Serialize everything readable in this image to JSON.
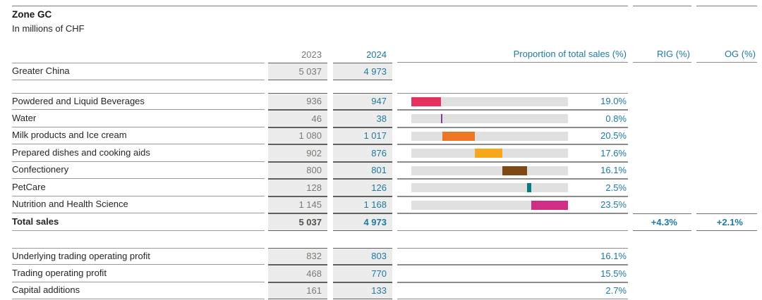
{
  "header": {
    "title": "Zone GC",
    "subtitle": "In millions of CHF",
    "col_2023": "2023",
    "col_2024": "2024",
    "col_proportion": "Proportion of total sales (%)",
    "col_rig": "RIG (%)",
    "col_og": "OG (%)"
  },
  "greater_china": {
    "label": "Greater China",
    "v2023": "5 037",
    "v2024": "4 973"
  },
  "categories": [
    {
      "label": "Powdered and Liquid Beverages",
      "v2023": "936",
      "v2024": "947",
      "proportion": 19.0,
      "proportion_label": "19.0%",
      "color": "#e4325e"
    },
    {
      "label": "Water",
      "v2023": "46",
      "v2024": "38",
      "proportion": 0.8,
      "proportion_label": "0.8%",
      "color": "#7e3f97"
    },
    {
      "label": "Milk products and Ice cream",
      "v2023": "1 080",
      "v2024": "1 017",
      "proportion": 20.5,
      "proportion_label": "20.5%",
      "color": "#ee7524"
    },
    {
      "label": "Prepared dishes and cooking aids",
      "v2023": "902",
      "v2024": "876",
      "proportion": 17.6,
      "proportion_label": "17.6%",
      "color": "#f6a71c"
    },
    {
      "label": "Confectionery",
      "v2023": "800",
      "v2024": "801",
      "proportion": 16.1,
      "proportion_label": "16.1%",
      "color": "#7d4a15"
    },
    {
      "label": "PetCare",
      "v2023": "128",
      "v2024": "126",
      "proportion": 2.5,
      "proportion_label": "2.5%",
      "color": "#077c80"
    },
    {
      "label": "Nutrition and Health Science",
      "v2023": "1 145",
      "v2024": "1 168",
      "proportion": 23.5,
      "proportion_label": "23.5%",
      "color": "#d02d87"
    }
  ],
  "total": {
    "label": "Total sales",
    "v2023": "5 037",
    "v2024": "4 973",
    "rig": "+4.3%",
    "og": "+2.1%"
  },
  "bottom_rows": [
    {
      "label": "Underlying trading operating profit",
      "v2023": "832",
      "v2024": "803",
      "proportion_label": "16.1%"
    },
    {
      "label": "Trading operating profit",
      "v2023": "468",
      "v2024": "770",
      "proportion_label": "15.5%"
    },
    {
      "label": "Capital additions",
      "v2023": "161",
      "v2024": "133",
      "proportion_label": "2.7%"
    }
  ],
  "colors": {
    "accent_blue": "#1e79a1",
    "value_gray": "#7d7972",
    "bar_track": "#e0e0e0"
  },
  "chart_data": {
    "type": "bar",
    "subtype": "stacked-proportion-offset",
    "title": "Zone GC",
    "unit_note": "In millions of CHF",
    "categories": [
      "Powdered and Liquid Beverages",
      "Water",
      "Milk products and Ice cream",
      "Prepared dishes and cooking aids",
      "Confectionery",
      "PetCare",
      "Nutrition and Health Science"
    ],
    "series": [
      {
        "name": "2023",
        "values": [
          936,
          46,
          1080,
          902,
          800,
          128,
          1145
        ]
      },
      {
        "name": "2024",
        "values": [
          947,
          38,
          1017,
          876,
          801,
          126,
          1168
        ]
      }
    ],
    "proportion_of_total_sales_pct": [
      19.0,
      0.8,
      20.5,
      17.6,
      16.1,
      2.5,
      23.5
    ],
    "bar_colors": [
      "#e4325e",
      "#7e3f97",
      "#ee7524",
      "#f6a71c",
      "#7d4a15",
      "#077c80",
      "#d02d87"
    ],
    "axis_range_pct": [
      0,
      100
    ],
    "total_sales": {
      "2023": 5037,
      "2024": 4973,
      "rig_pct": "+4.3%",
      "og_pct": "+2.1%"
    },
    "other_rows": [
      {
        "label": "Underlying trading operating profit",
        "2023": 832,
        "2024": 803,
        "pct_of_sales": "16.1%"
      },
      {
        "label": "Trading operating profit",
        "2023": 468,
        "2024": 770,
        "pct_of_sales": "15.5%"
      },
      {
        "label": "Capital additions",
        "2023": 161,
        "2024": 133,
        "pct_of_sales": "2.7%"
      }
    ]
  }
}
